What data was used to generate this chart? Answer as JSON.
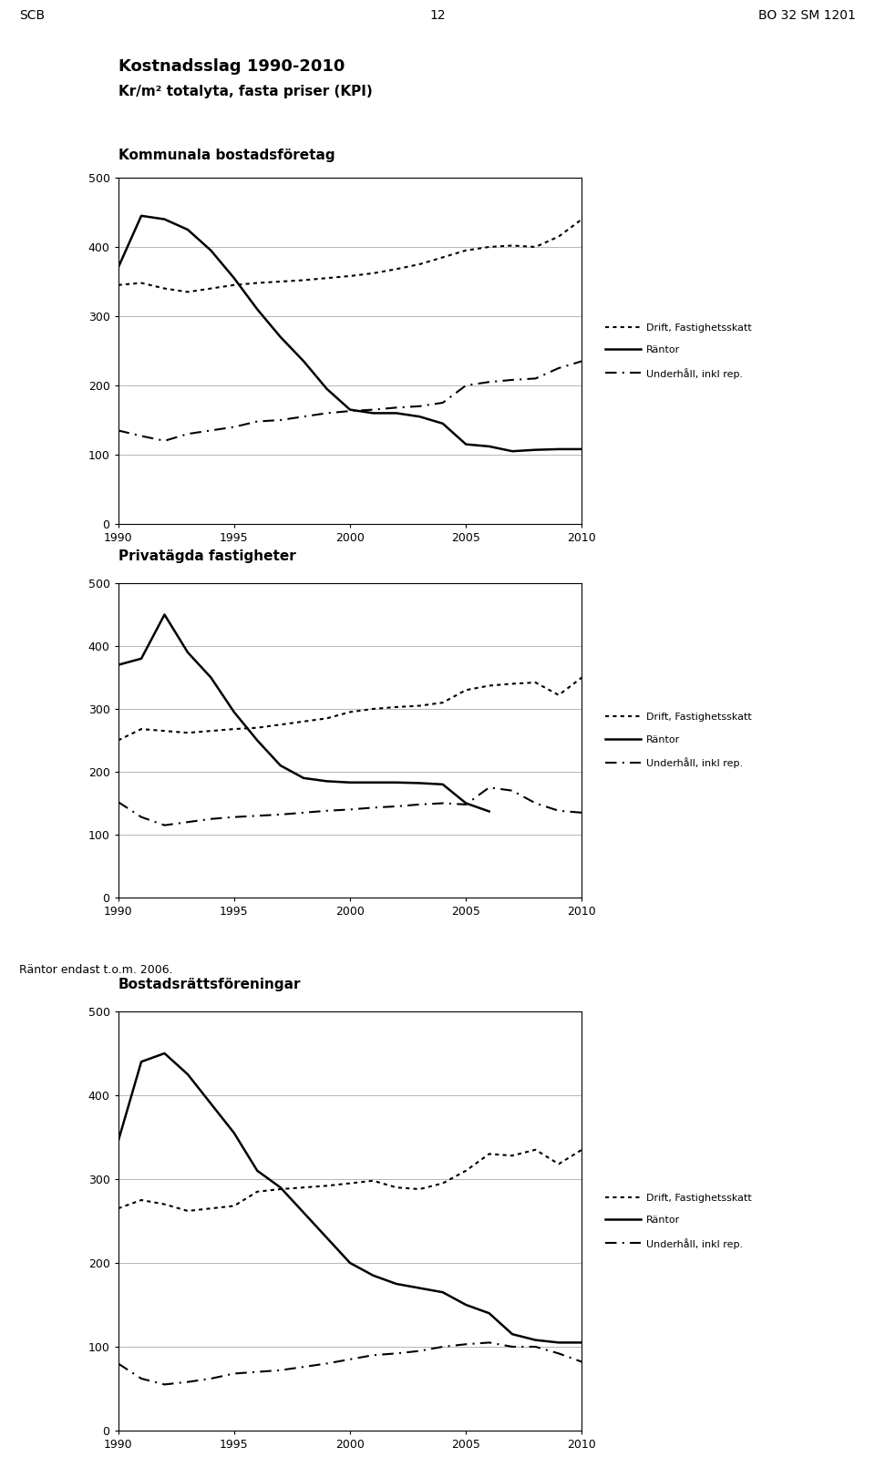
{
  "title_main": "Kostnadsslag 1990-2010",
  "subtitle_main": "Kr/m² totalyta, fasta priser (KPI)",
  "header_left": "SCB",
  "header_center": "12",
  "header_right": "BO 32 SM 1201",
  "footer_note": "Räntor endast t.o.m. 2006.",
  "years": [
    1990,
    1991,
    1992,
    1993,
    1994,
    1995,
    1996,
    1997,
    1998,
    1999,
    2000,
    2001,
    2002,
    2003,
    2004,
    2005,
    2006,
    2007,
    2008,
    2009,
    2010
  ],
  "kommunala": {
    "title": "Kommunala bostadsföretag",
    "drift": [
      345,
      348,
      340,
      335,
      340,
      345,
      348,
      350,
      352,
      355,
      358,
      362,
      368,
      375,
      385,
      395,
      400,
      402,
      400,
      415,
      440
    ],
    "rantor": [
      370,
      445,
      440,
      425,
      395,
      355,
      310,
      270,
      235,
      195,
      165,
      160,
      160,
      155,
      145,
      115,
      112,
      105,
      107,
      108,
      108
    ],
    "underhall": [
      135,
      127,
      120,
      130,
      135,
      140,
      148,
      150,
      155,
      160,
      163,
      165,
      168,
      170,
      175,
      200,
      205,
      208,
      210,
      225,
      235
    ]
  },
  "privatagda": {
    "title": "Privatägda fastigheter",
    "drift": [
      250,
      268,
      265,
      262,
      265,
      268,
      270,
      275,
      280,
      285,
      295,
      300,
      303,
      305,
      310,
      330,
      337,
      340,
      342,
      322,
      350
    ],
    "rantor": [
      370,
      380,
      450,
      390,
      350,
      295,
      250,
      210,
      190,
      185,
      183,
      183,
      183,
      182,
      180,
      150,
      137,
      null,
      null,
      null,
      null
    ],
    "underhall": [
      152,
      128,
      115,
      120,
      125,
      128,
      130,
      132,
      135,
      138,
      140,
      143,
      145,
      148,
      150,
      148,
      175,
      170,
      150,
      138,
      135
    ]
  },
  "bostadsratts": {
    "title": "Bostadsrättsföreningar",
    "drift": [
      265,
      275,
      270,
      262,
      265,
      268,
      285,
      288,
      290,
      292,
      295,
      298,
      290,
      288,
      295,
      310,
      330,
      328,
      335,
      318,
      335
    ],
    "rantor": [
      345,
      440,
      450,
      425,
      390,
      355,
      310,
      290,
      260,
      230,
      200,
      185,
      175,
      170,
      165,
      150,
      140,
      115,
      108,
      105,
      105
    ],
    "underhall": [
      80,
      62,
      55,
      58,
      62,
      68,
      70,
      72,
      76,
      80,
      85,
      90,
      92,
      95,
      100,
      103,
      105,
      100,
      100,
      92,
      82
    ]
  },
  "legend_drift": "Drift, Fastighetsskatt",
  "legend_rantor": "Räntor",
  "legend_underhall": "Underhåll, inkl rep.",
  "ylim": [
    0,
    500
  ],
  "yticks": [
    0,
    100,
    200,
    300,
    400,
    500
  ],
  "xticks": [
    1990,
    1995,
    2000,
    2005,
    2010
  ],
  "xlim": [
    1990,
    2010
  ],
  "color_line": "#000000",
  "line_width": 1.5,
  "grid_color": "#aaaaaa",
  "box_color": "#000000",
  "background_color": "#ffffff",
  "fig_width": 9.6,
  "fig_height": 15.99,
  "dpi": 100
}
